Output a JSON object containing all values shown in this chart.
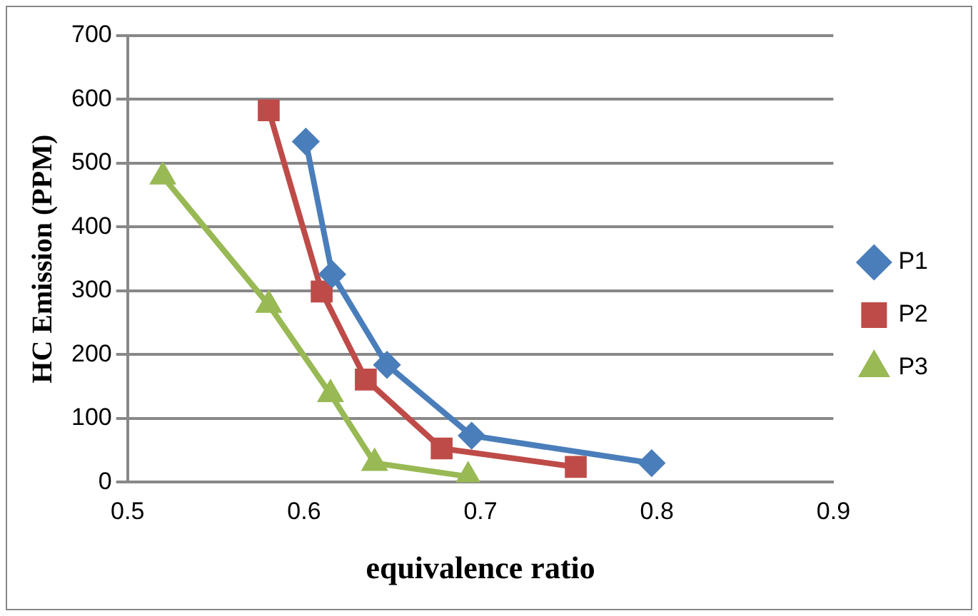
{
  "chart_data": {
    "type": "line",
    "xlabel": "equivalence ratio",
    "ylabel": "HC Emission (PPM)",
    "xlim": [
      0.5,
      0.9
    ],
    "xticks": [
      0.5,
      0.6,
      0.7,
      0.8,
      0.9
    ],
    "ylim": [
      0,
      700
    ],
    "yticks": [
      0,
      100,
      200,
      300,
      400,
      500,
      600,
      700
    ],
    "grid": "y",
    "legend": "right",
    "line_style": "solid",
    "series": [
      {
        "name": "P1",
        "color": "#4a7ebb",
        "marker": "diamond",
        "x": [
          0.601,
          0.616,
          0.647,
          0.695,
          0.797
        ],
        "values": [
          534,
          326,
          184,
          73,
          30
        ]
      },
      {
        "name": "P2",
        "color": "#be4b48",
        "marker": "square",
        "x": [
          0.58,
          0.61,
          0.635,
          0.678,
          0.754
        ],
        "values": [
          583,
          299,
          161,
          53,
          24
        ]
      },
      {
        "name": "P3",
        "color": "#98b954",
        "marker": "triangle",
        "x": [
          0.52,
          0.58,
          0.615,
          0.64,
          0.693
        ],
        "values": [
          479,
          278,
          138,
          30,
          9
        ]
      }
    ]
  }
}
